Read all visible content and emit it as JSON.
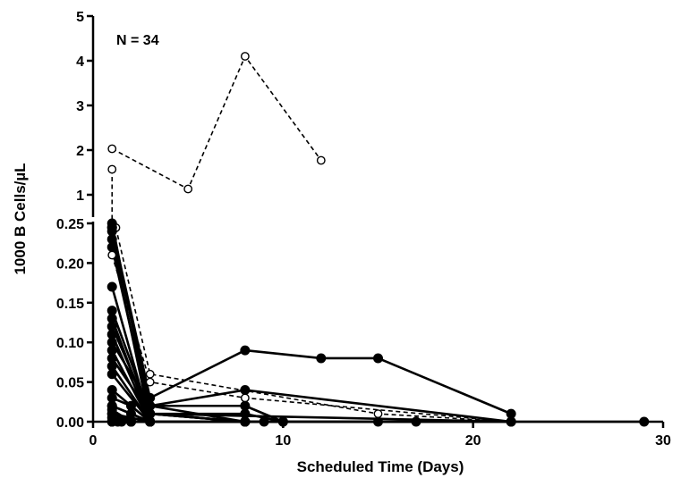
{
  "chart_data": {
    "type": "line",
    "title": "",
    "annotation": "N = 34",
    "xlabel": "Scheduled Time (Days)",
    "ylabel": "1000 B Cells/µL",
    "xlim": [
      0,
      30
    ],
    "x_ticks": [
      "0",
      "10",
      "20",
      "30"
    ],
    "y_axis": {
      "segmented": true,
      "lower_range": [
        0,
        0.25
      ],
      "upper_range": [
        0.5,
        5
      ],
      "lower_ticks": [
        "0.00",
        "0.05",
        "0.10",
        "0.15",
        "0.20",
        "0.25"
      ],
      "upper_ticks": [
        "1",
        "2",
        "3",
        "4",
        "5"
      ]
    },
    "grid": false,
    "legend": "none",
    "series": [
      {
        "style": "dashed-open",
        "points": [
          [
            1,
            2.03
          ],
          [
            5,
            1.13
          ],
          [
            8,
            4.1
          ],
          [
            12,
            1.77
          ]
        ]
      },
      {
        "style": "dashed-open",
        "points": [
          [
            1,
            1.57
          ],
          [
            1,
            0.258
          ]
        ]
      },
      {
        "style": "dashed-open",
        "points": [
          [
            1.2,
            0.262
          ],
          [
            3,
            0.06
          ],
          [
            15,
            0.01
          ],
          [
            22,
            0.0
          ]
        ]
      },
      {
        "style": "dashed-open",
        "points": [
          [
            1,
            0.21
          ],
          [
            3,
            0.05
          ],
          [
            8,
            0.03
          ],
          [
            22,
            0.0
          ]
        ]
      },
      {
        "style": "solid-filled",
        "points": [
          [
            1,
            0.27
          ],
          [
            3,
            0.02
          ],
          [
            8,
            0.04
          ],
          [
            22,
            0.0
          ]
        ]
      },
      {
        "style": "solid-filled",
        "points": [
          [
            1,
            0.265
          ],
          [
            3,
            0.03
          ],
          [
            8,
            0.09
          ],
          [
            12,
            0.08
          ],
          [
            15,
            0.08
          ],
          [
            22,
            0.01
          ]
        ]
      },
      {
        "style": "solid-filled",
        "points": [
          [
            1,
            0.25
          ],
          [
            3,
            0.01
          ],
          [
            8,
            0.0
          ],
          [
            10,
            0.0
          ]
        ]
      },
      {
        "style": "solid-filled",
        "points": [
          [
            1,
            0.24
          ],
          [
            3,
            0.02
          ],
          [
            8,
            0.0
          ]
        ]
      },
      {
        "style": "solid-filled",
        "points": [
          [
            1,
            0.23
          ],
          [
            3,
            0.0
          ],
          [
            8,
            0.0
          ]
        ]
      },
      {
        "style": "solid-filled",
        "points": [
          [
            1,
            0.22
          ],
          [
            3,
            0.01
          ],
          [
            8,
            0.0
          ]
        ]
      },
      {
        "style": "solid-filled",
        "points": [
          [
            1,
            0.17
          ],
          [
            3,
            0.0
          ],
          [
            8,
            0.0
          ]
        ]
      },
      {
        "style": "solid-filled",
        "points": [
          [
            1,
            0.14
          ],
          [
            3,
            0.01
          ],
          [
            8,
            0.01
          ],
          [
            10,
            0.0
          ]
        ]
      },
      {
        "style": "solid-filled",
        "points": [
          [
            1,
            0.13
          ],
          [
            3,
            0.0
          ]
        ]
      },
      {
        "style": "solid-filled",
        "points": [
          [
            1,
            0.12
          ],
          [
            3,
            0.01
          ],
          [
            22,
            0.0
          ]
        ]
      },
      {
        "style": "solid-filled",
        "points": [
          [
            1,
            0.11
          ],
          [
            3,
            0.0
          ]
        ]
      },
      {
        "style": "solid-filled",
        "points": [
          [
            1,
            0.1
          ],
          [
            3,
            0.02
          ],
          [
            8,
            0.02
          ],
          [
            10,
            0.0
          ]
        ]
      },
      {
        "style": "solid-filled",
        "points": [
          [
            1,
            0.09
          ],
          [
            3,
            0.0
          ]
        ]
      },
      {
        "style": "solid-filled",
        "points": [
          [
            1,
            0.08
          ],
          [
            3,
            0.01
          ],
          [
            8,
            0.0
          ]
        ]
      },
      {
        "style": "solid-filled",
        "points": [
          [
            1,
            0.07
          ],
          [
            3,
            0.0
          ]
        ]
      },
      {
        "style": "solid-filled",
        "points": [
          [
            1,
            0.06
          ],
          [
            3,
            0.0
          ],
          [
            8,
            0.0
          ]
        ]
      },
      {
        "style": "solid-filled",
        "points": [
          [
            1,
            0.04
          ],
          [
            3,
            0.0
          ]
        ]
      },
      {
        "style": "solid-filled",
        "points": [
          [
            1,
            0.03
          ],
          [
            2,
            0.02
          ],
          [
            3,
            0.0
          ]
        ]
      },
      {
        "style": "solid-filled",
        "points": [
          [
            1,
            0.02
          ],
          [
            2,
            0.01
          ],
          [
            3,
            0.0
          ]
        ]
      },
      {
        "style": "solid-filled",
        "points": [
          [
            1,
            0.02
          ],
          [
            3,
            0.0
          ],
          [
            8,
            0.0
          ]
        ]
      },
      {
        "style": "solid-filled",
        "points": [
          [
            1,
            0.01
          ],
          [
            2,
            0.0
          ]
        ]
      },
      {
        "style": "solid-filled",
        "points": [
          [
            1,
            0.01
          ],
          [
            3,
            0.0
          ]
        ]
      },
      {
        "style": "solid-filled",
        "points": [
          [
            1,
            0.005
          ],
          [
            1.5,
            0.0
          ],
          [
            2,
            0.0
          ]
        ]
      },
      {
        "style": "solid-filled",
        "points": [
          [
            1,
            0.0
          ],
          [
            3,
            0.0
          ]
        ]
      },
      {
        "style": "solid-filled",
        "points": [
          [
            1.3,
            0.0
          ],
          [
            2,
            0.0
          ]
        ]
      },
      {
        "style": "solid-filled",
        "points": [
          [
            1,
            0.0
          ],
          [
            8,
            0.0
          ],
          [
            9,
            0.0
          ]
        ]
      },
      {
        "style": "solid-filled",
        "points": [
          [
            1,
            0.0
          ],
          [
            15,
            0.0
          ],
          [
            17,
            0.0
          ]
        ]
      },
      {
        "style": "solid-filled",
        "points": [
          [
            1,
            0.0
          ],
          [
            22,
            0.0
          ]
        ]
      },
      {
        "style": "solid-filled",
        "points": [
          [
            1,
            0.0
          ],
          [
            29,
            0.0
          ]
        ]
      },
      {
        "style": "solid-filled",
        "points": [
          [
            1,
            0.015
          ],
          [
            2,
            0.0
          ]
        ]
      }
    ]
  }
}
